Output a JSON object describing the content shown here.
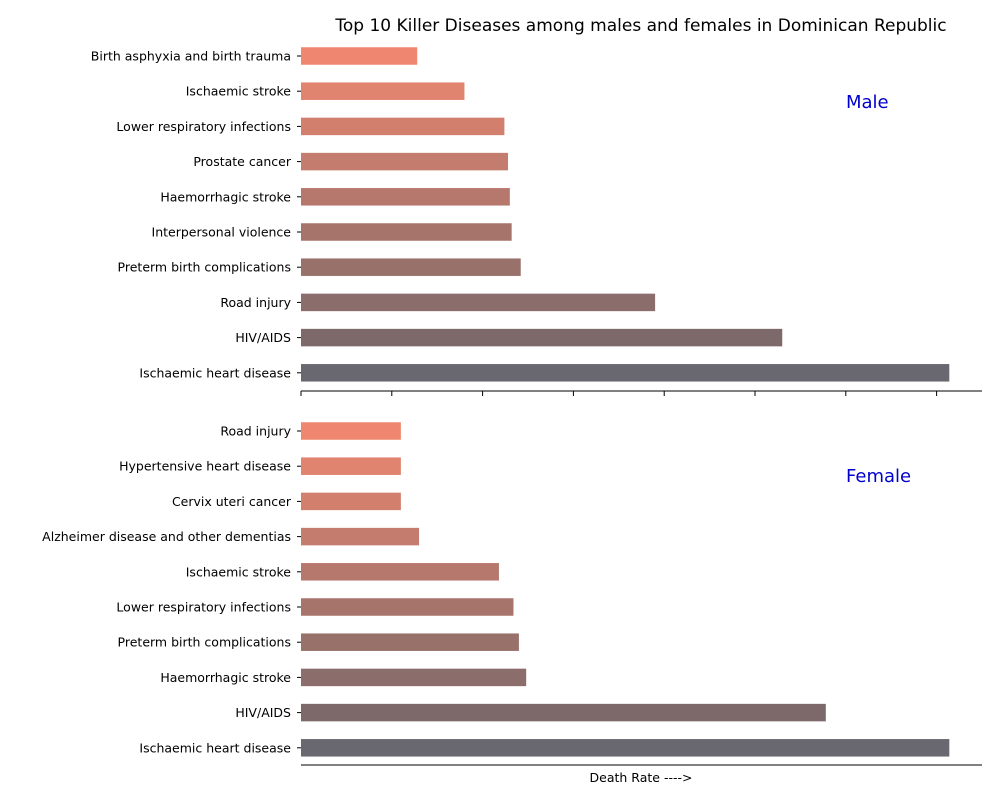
{
  "chart_data": {
    "type": "bar",
    "orientation": "horizontal",
    "title": "Top 10 Killer Diseases among males and females in Dominican Republic",
    "xlabel": "Death Rate ---->",
    "xlim": [
      0,
      37.5
    ],
    "panel_label_color": "#0000cc",
    "panels": [
      {
        "label": "Male",
        "categories": [
          "Birth asphyxia and birth trauma",
          "Ischaemic stroke",
          "Lower respiratory infections",
          "Prostate cancer",
          "Haemorrhagic stroke",
          "Interpersonal violence",
          "Preterm birth complications",
          "Road injury",
          "HIV/AIDS",
          "Ischaemic heart disease"
        ],
        "values": [
          6.4,
          9.0,
          11.2,
          11.4,
          11.5,
          11.6,
          12.1,
          19.5,
          26.5,
          35.7
        ]
      },
      {
        "label": "Female",
        "categories": [
          "Road injury",
          "Hypertensive heart disease",
          "Cervix uteri cancer",
          "Alzheimer disease and other dementias",
          "Ischaemic stroke",
          "Lower respiratory infections",
          "Preterm birth complications",
          "Haemorrhagic stroke",
          "HIV/AIDS",
          "Ischaemic heart disease"
        ],
        "values": [
          5.5,
          5.5,
          5.5,
          6.5,
          10.9,
          11.7,
          12.0,
          12.4,
          28.9,
          35.7
        ]
      }
    ],
    "bar_colors": [
      "#ef8770",
      "#e0836f",
      "#d27f6e",
      "#c47c6e",
      "#b6786d",
      "#a7746c",
      "#99716b",
      "#8b6d6b",
      "#7d696a",
      "#696871"
    ],
    "grid": false,
    "xticks_shown_on": "top panel only (no tick labels)"
  }
}
